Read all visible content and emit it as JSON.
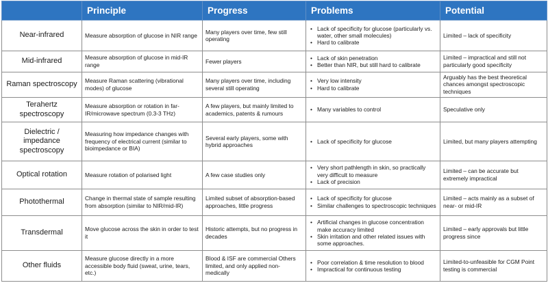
{
  "headers": [
    "",
    "Principle",
    "Progress",
    "Problems",
    "Potential"
  ],
  "rows": [
    {
      "method": "Near-infrared",
      "principle": "Measure absorption of glucose in NIR range",
      "progress": "Many players over time, few still operating",
      "problems": [
        "Lack of specificity for glucose (particularly vs. water, other small molecules)",
        "Hard to calibrate"
      ],
      "potential": "Limited – lack of specificity"
    },
    {
      "method": "Mid-infrared",
      "principle": "Measure absorption of glucose in mid-IR range",
      "progress": "Fewer players",
      "problems": [
        "Lack of skin penetration",
        "Better than NIR, but still hard to calibrate"
      ],
      "potential": "Limited – impractical and still not particularly good specificity"
    },
    {
      "method": "Raman spectroscopy",
      "principle": "Measure Raman scattering (vibrational modes) of glucose",
      "progress": "Many players over time, including several still operating",
      "problems": [
        "Very low intensity",
        "Hard to calibrate"
      ],
      "potential": "Arguably has the best theoretical chances amongst spectroscopic techniques"
    },
    {
      "method": "Terahertz spectroscopy",
      "principle": "Measure absorption or rotation in far-IR/microwave spectrum (0.3-3 THz)",
      "progress": "A few players, but mainly limited to academics, patents & rumours",
      "problems": [
        "Many variables to control"
      ],
      "potential": "Speculative only"
    },
    {
      "method": "Dielectric / impedance spectroscopy",
      "principle": "Measuring how impedance changes with frequency of electrical current (similar to bioimpedance or BIA)",
      "progress": "Several early players, some with hybrid approaches",
      "problems": [
        "Lack of specificity for glucose"
      ],
      "potential": "Limited, but many players attempting"
    },
    {
      "method": "Optical rotation",
      "principle": "Measure rotation of polarised light",
      "progress": "A few case studies only",
      "problems": [
        "Very short pathlength in skin, so practically very difficult to measure",
        "Lack of precision"
      ],
      "potential": "Limited – can be accurate but extremely impractical"
    },
    {
      "method": "Photothermal",
      "principle": "Change in thermal state of sample resulting from absorption (similar to NIR/mid-IR)",
      "progress": "Limited subset of absorption-based approaches, little progress",
      "problems": [
        "Lack of specificity for glucose",
        "Similar challenges to spectroscopic techniques"
      ],
      "potential": "Limited – acts mainly as a subset of near- or mid-IR"
    },
    {
      "method": "Transdermal",
      "principle": "Move glucose across the skin in order to test it",
      "progress": "Historic attempts, but no progress in decades",
      "problems": [
        "Artificial changes in glucose concentration make accuracy limited",
        "Skin irritation and other related issues with some approaches."
      ],
      "potential": "Limited – early approvals but little progress since"
    },
    {
      "method": "Other fluids",
      "principle": "Measure glucose directly in a more accessible body fluid (sweat, urine, tears, etc.)",
      "progress": "Blood & ISF are commercial Others limited, and only applied non-medically",
      "problems": [
        "Poor correlation & time resolution to blood",
        "Impractical for continuous testing"
      ],
      "potential": "Limited-to-unfeasible for CGM Point testing is commercial"
    }
  ],
  "colors": {
    "header_bg": "#2e75c1",
    "header_text": "#ffffff",
    "grid_line": "#8c8c8c"
  }
}
